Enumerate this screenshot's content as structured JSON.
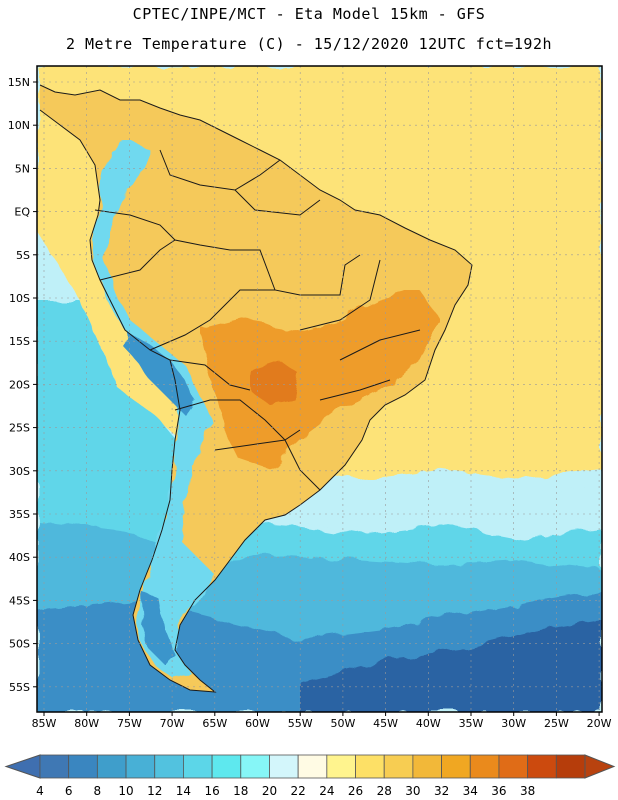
{
  "title": {
    "line1": "CPTEC/INPE/MCT  -   Eta Model 15km  -  GFS",
    "line2": "2 Metre Temperature (C) - 15/12/2020 12UTC fct=192h"
  },
  "axes": {
    "lat_labels": [
      "15N",
      "10N",
      "5N",
      "EQ",
      "5S",
      "10S",
      "15S",
      "20S",
      "25S",
      "30S",
      "35S",
      "40S",
      "45S",
      "50S",
      "55S"
    ],
    "lon_labels": [
      "85W",
      "80W",
      "75W",
      "70W",
      "65W",
      "60W",
      "55W",
      "50W",
      "45W",
      "40W",
      "35W",
      "30W",
      "25W",
      "20W"
    ]
  },
  "colorbar": {
    "values": [
      "4",
      "6",
      "8",
      "10",
      "12",
      "14",
      "16",
      "18",
      "20",
      "22",
      "24",
      "26",
      "28",
      "30",
      "32",
      "34",
      "36",
      "38"
    ],
    "colors": [
      "#3f78b4",
      "#3a86c0",
      "#3f9ecb",
      "#48b0d6",
      "#52c2df",
      "#5cd6e8",
      "#5ee8ee",
      "#86f6f7",
      "#d3f6fb",
      "#fffbe4",
      "#fff48e",
      "#fde066",
      "#f7cd52",
      "#f2b839",
      "#f0a722",
      "#ea8a1c",
      "#e06c17",
      "#cc4a0e",
      "#b63d0b"
    ],
    "arrow_left": "#3f6fb0",
    "arrow_right": "#b8420f"
  },
  "map_colors": {
    "ocean_cold": "#2c63a3",
    "ocean_cool": "#3b8ec6",
    "ocean_mid": "#4fb8dc",
    "ocean_light": "#60d6e9",
    "ocean_pale": "#bff0f8",
    "tropic_ocean": "#fde378",
    "land_warm": "#f5c95a",
    "land_hot": "#ee9c2c",
    "andes": "#6fd9ef",
    "andes_high": "#3a95cb",
    "border": "#1a1a1a",
    "grid": "#9a9a9a"
  }
}
